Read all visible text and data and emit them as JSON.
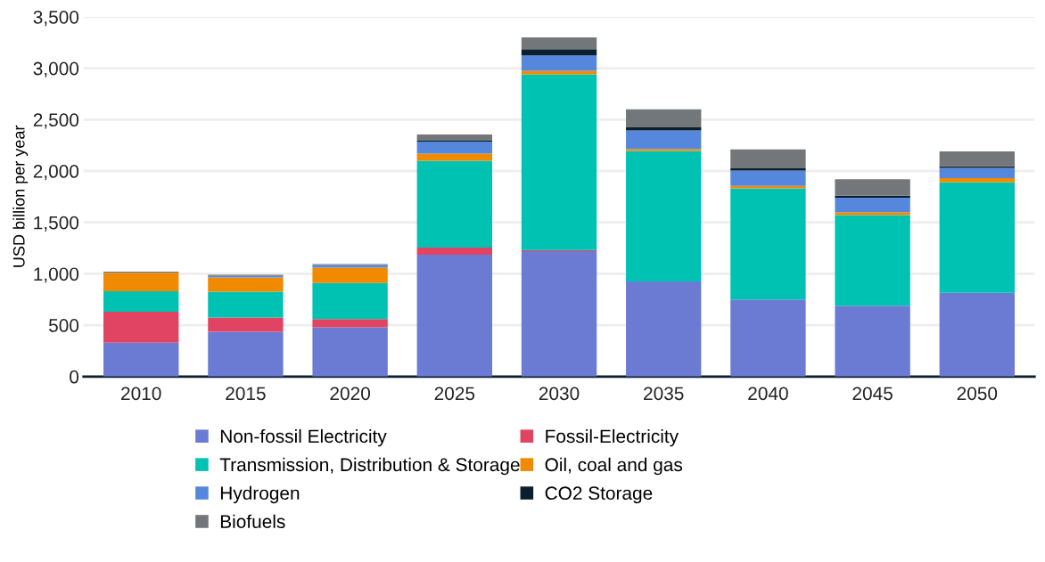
{
  "chart_data": {
    "type": "bar",
    "stacked": true,
    "ylabel": "USD billion per year",
    "categories": [
      "2010",
      "2015",
      "2020",
      "2025",
      "2030",
      "2035",
      "2040",
      "2045",
      "2050"
    ],
    "ylim": [
      0,
      3500
    ],
    "yticks": [
      {
        "value": 0,
        "label": "0"
      },
      {
        "value": 500,
        "label": "500"
      },
      {
        "value": 1000,
        "label": "1,000"
      },
      {
        "value": 1500,
        "label": "1,500"
      },
      {
        "value": 2000,
        "label": "2,000"
      },
      {
        "value": 2500,
        "label": "2,500"
      },
      {
        "value": 3000,
        "label": "3,000"
      },
      {
        "value": 3500,
        "label": "3,500"
      }
    ],
    "grid": "y",
    "legend": "bottom",
    "series": [
      {
        "name": "Non-fossil Electricity",
        "color": "#6b7bd4",
        "values": [
          330,
          435,
          480,
          1185,
          1220,
          925,
          750,
          690,
          815
        ]
      },
      {
        "name": "Fossil-Electricity",
        "color": "#e04462",
        "values": [
          300,
          140,
          80,
          70,
          10,
          0,
          0,
          0,
          0
        ]
      },
      {
        "name": "Transmission, Distribution & Storage",
        "color": "#00c2b2",
        "values": [
          200,
          250,
          350,
          845,
          1710,
          1270,
          1080,
          880,
          1075
        ]
      },
      {
        "name": "Oil, coal and gas",
        "color": "#f08a00",
        "values": [
          180,
          140,
          150,
          70,
          35,
          20,
          25,
          30,
          40
        ]
      },
      {
        "name": "Hydrogen",
        "color": "#5588dd",
        "values": [
          0,
          15,
          25,
          115,
          150,
          180,
          150,
          140,
          100
        ]
      },
      {
        "name": "CO2 Storage",
        "color": "#0b1f2e",
        "values": [
          0,
          0,
          0,
          10,
          60,
          30,
          20,
          20,
          15
        ]
      },
      {
        "name": "Biofuels",
        "color": "#737779",
        "values": [
          10,
          10,
          10,
          60,
          115,
          175,
          185,
          160,
          145
        ]
      }
    ]
  }
}
